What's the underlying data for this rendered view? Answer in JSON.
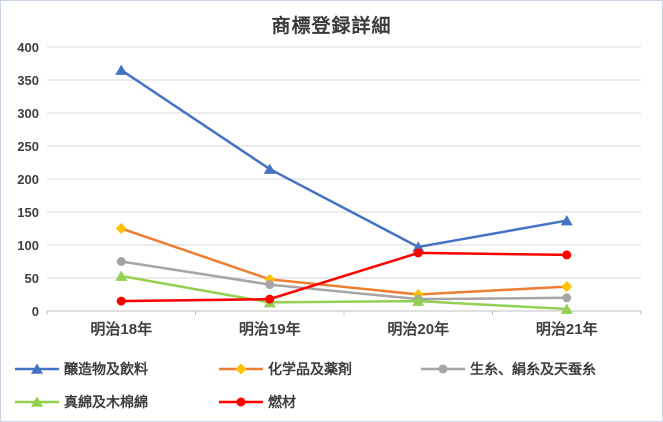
{
  "chart_data": {
    "type": "line",
    "title": "商標登録詳細",
    "categories": [
      "明治18年",
      "明治19年",
      "明治20年",
      "明治21年"
    ],
    "series": [
      {
        "name": "醸造物及飲料",
        "color": "#4472C4",
        "marker": "triangle",
        "values": [
          365,
          215,
          97,
          137
        ]
      },
      {
        "name": "化学品及薬剤",
        "color": "#ED7D31",
        "marker": "diamond",
        "marker_color": "#FFC000",
        "values": [
          125,
          48,
          25,
          37
        ]
      },
      {
        "name": "生糸、絹糸及天蚕糸",
        "color": "#A5A5A5",
        "marker": "circle",
        "values": [
          75,
          40,
          18,
          20
        ]
      },
      {
        "name": "真綿及木棉綿",
        "color": "#92D050",
        "marker": "triangle",
        "values": [
          53,
          13,
          15,
          3
        ]
      },
      {
        "name": "燃材",
        "color": "#FF0000",
        "marker": "circle",
        "values": [
          15,
          18,
          88,
          85
        ]
      }
    ],
    "ylim": [
      0,
      400
    ],
    "ytick_step": 50,
    "grid": true,
    "legend_position": "bottom",
    "gridline_color": "#D9D9D9",
    "axis_line_color": "#BFBFBF",
    "text_color": "#3f3f3f"
  }
}
